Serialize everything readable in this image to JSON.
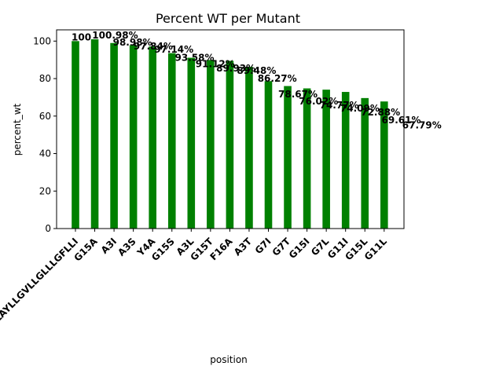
{
  "chart_data": {
    "type": "bar",
    "title": "Percent WT per Mutant",
    "xlabel": "position",
    "ylabel": "percent_wt",
    "categories": [
      "LLLAYLLGVLLGLLLGFLLI",
      "G15A",
      "A3I",
      "A3S",
      "Y4A",
      "G15S",
      "A3L",
      "G15T",
      "F16A",
      "A3T",
      "G7I",
      "G7T",
      "G15I",
      "G7L",
      "G11I",
      "G15L",
      "G11L"
    ],
    "values": [
      100.0,
      100.98,
      98.98,
      97.84,
      97.14,
      93.58,
      91.12,
      89.93,
      89.48,
      86.27,
      78.67,
      76.02,
      74.77,
      74.09,
      72.88,
      69.61,
      67.79
    ],
    "labels": [
      "100",
      "100.98%",
      "98.98%",
      "97.84%",
      "97.14%",
      "93.58%",
      "91.12%",
      "89.93%",
      "89.48%",
      "86.27%",
      "78.67%",
      "76.02%",
      "74.77%",
      "74.09%",
      "72.88%",
      "69.61%",
      "67.79%"
    ],
    "ylim": [
      0,
      106
    ],
    "yticks": [
      0,
      20,
      40,
      60,
      80,
      100
    ],
    "bar_color": "#008000",
    "grid": false,
    "legend": "none"
  }
}
